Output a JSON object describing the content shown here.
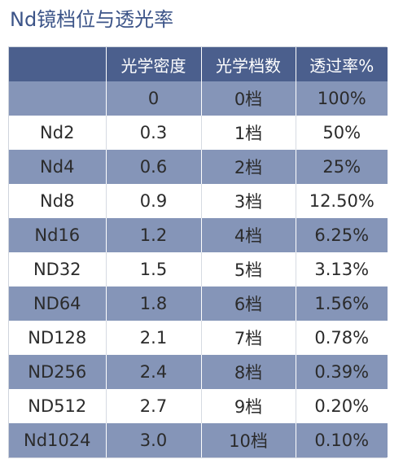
{
  "page": {
    "title": "Nd镜档位与透光率"
  },
  "table": {
    "columns": [
      "",
      "光学密度",
      "光学档数",
      "透过率%"
    ],
    "rows": [
      [
        "",
        "0",
        "0档",
        "100%"
      ],
      [
        "Nd2",
        "0.3",
        "1档",
        "50%"
      ],
      [
        "Nd4",
        "0.6",
        "2档",
        "25%"
      ],
      [
        "Nd8",
        "0.9",
        "3档",
        "12.50%"
      ],
      [
        "Nd16",
        "1.2",
        "4档",
        "6.25%"
      ],
      [
        "ND32",
        "1.5",
        "5档",
        "3.13%"
      ],
      [
        "ND64",
        "1.8",
        "6档",
        "1.56%"
      ],
      [
        "ND128",
        "2.1",
        "7档",
        "0.78%"
      ],
      [
        "ND256",
        "2.4",
        "8档",
        "0.39%"
      ],
      [
        "ND512",
        "2.7",
        "9档",
        "0.20%"
      ],
      [
        "Nd1024",
        "3.0",
        "10档",
        "0.10%"
      ]
    ]
  },
  "colors": {
    "title": "#3c5488",
    "header_background": "#4b5f8d",
    "header_text": "#ffffff",
    "band_row_background": "#8595b8",
    "plain_row_background": "#ffffff",
    "cell_text": "#2b2b2b"
  }
}
